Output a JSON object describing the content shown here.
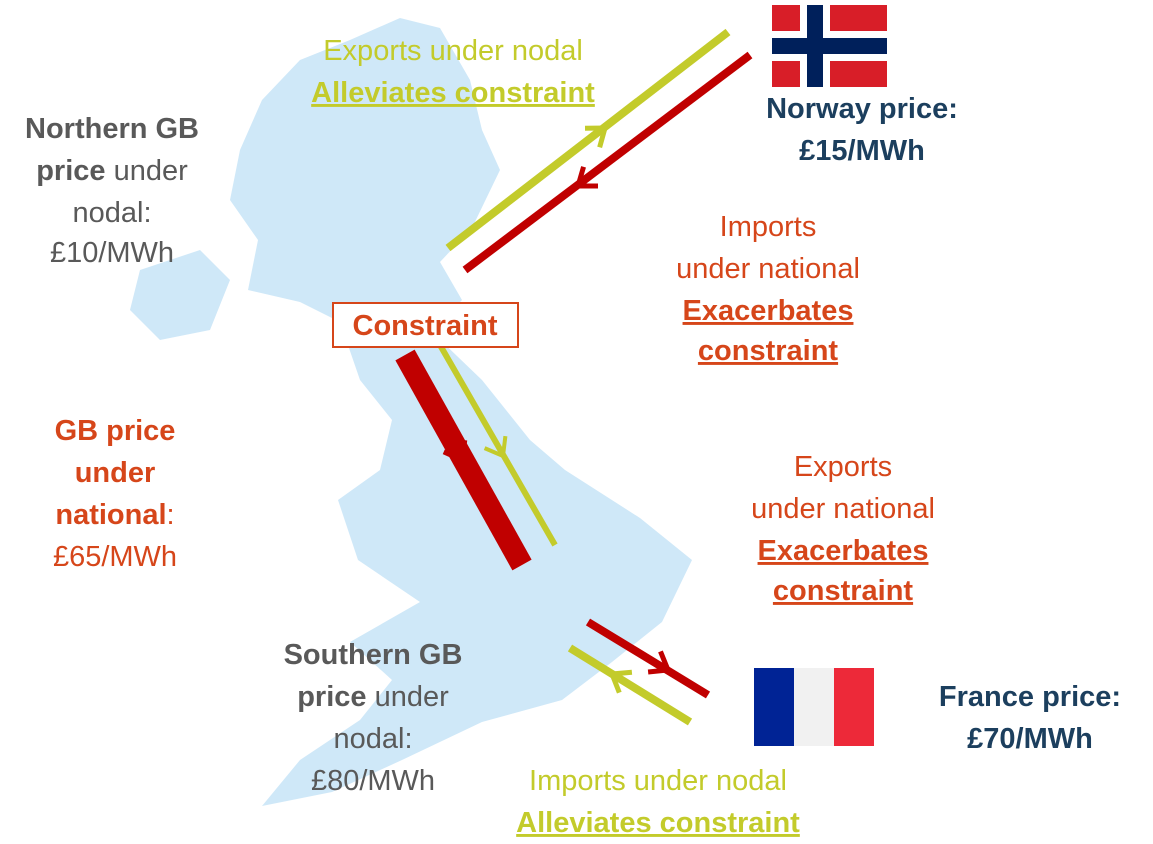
{
  "labels": {
    "exports_nodal": {
      "line1": "Exports under nodal",
      "line2": "Alleviates constraint"
    },
    "norway": {
      "line1": "Norway price:",
      "line2": "£15/MWh"
    },
    "northern_gb": {
      "line1": "Northern GB",
      "line2_bold": "price",
      "line2_rest": "under",
      "line3": "nodal:",
      "line4": "£10/MWh"
    },
    "imports_national": {
      "line1": "Imports",
      "line2": "under national",
      "line3": "Exacerbates",
      "line4": "constraint"
    },
    "constraint": "Constraint",
    "gb_national": {
      "line1": "GB price",
      "line2": "under",
      "line3": "national",
      "line3_colon": ":",
      "line4": "£65/MWh"
    },
    "exports_national": {
      "line1": "Exports",
      "line2": "under national",
      "line3": "Exacerbates",
      "line4": "constraint"
    },
    "southern_gb": {
      "line1": "Southern GB",
      "line2_bold": "price",
      "line2_rest": "under",
      "line3": "nodal:",
      "line4": "£80/MWh"
    },
    "france": {
      "line1": "France price:",
      "line2": "£70/MWh"
    },
    "imports_nodal": {
      "line1": "Imports under nodal",
      "line2": "Alleviates constraint"
    }
  }
}
